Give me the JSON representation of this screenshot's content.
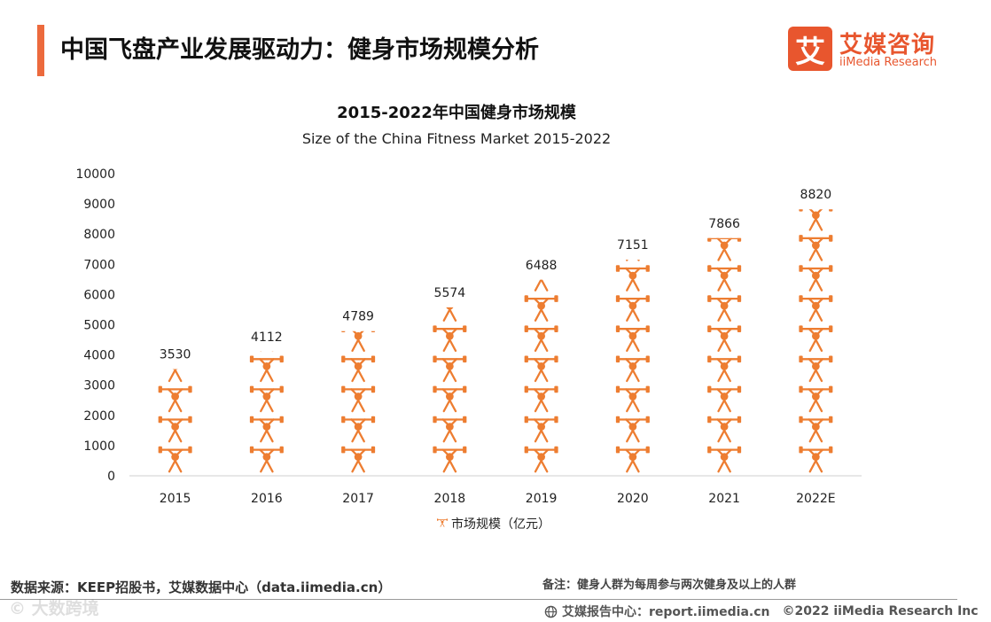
{
  "header": {
    "title": "中国飞盘产业发展驱动力：健身市场规模分析"
  },
  "logo": {
    "mark": "艾",
    "cn": "艾媒咨询",
    "en": "iiMedia Research",
    "color": "#e8562e"
  },
  "chart_data": {
    "type": "bar",
    "title": "2015-2022年中国健身市场规模",
    "subtitle": "Size of the China Fitness Market 2015-2022",
    "categories": [
      "2015",
      "2016",
      "2017",
      "2018",
      "2019",
      "2020",
      "2021",
      "2022E"
    ],
    "values": [
      3530,
      4112,
      4789,
      5574,
      6488,
      7151,
      7866,
      8820
    ],
    "data_labels": [
      "3530",
      "4112",
      "4789",
      "5574",
      "6488",
      "7151",
      "7866",
      "8820"
    ],
    "y_ticks": [
      "0",
      "1000",
      "2000",
      "3000",
      "4000",
      "5000",
      "6000",
      "7000",
      "8000",
      "9000",
      "10000"
    ],
    "ylim": [
      0,
      10000
    ],
    "unit_per_icon": 1000,
    "series_name": "市场规模（亿元）",
    "legend": "bottom-center",
    "xlabel": "",
    "ylabel": "",
    "grid": false,
    "color": "#ed7d31"
  },
  "footer": {
    "source": "数据来源：KEEP招股书，艾媒数据中心（data.iimedia.cn）",
    "note": "备注：健身人群为每周参与两次健身及以上的人群",
    "report_center": "艾媒报告中心：report.iimedia.cn",
    "copyright": "©2022  iiMedia Research  Inc",
    "watermark": "© 大数跨境"
  }
}
